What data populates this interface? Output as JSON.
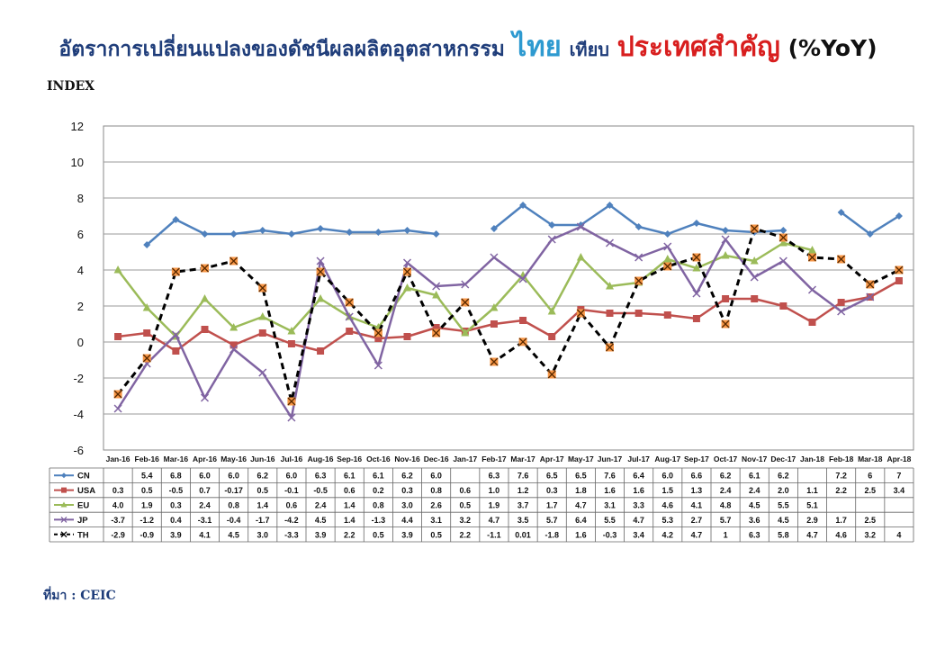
{
  "title": {
    "part1": "อัตราการเปลี่ยนแปลงของดัชนีผลผลิตอุตสาหกรรม",
    "part2": "ไทย",
    "part3": "เทียบ",
    "part4": "ประเทศสำคัญ",
    "part5": "(%YoY)"
  },
  "source": "ที่มา : CEIC",
  "colors": {
    "CN": "#4f81bd",
    "USA": "#c0504d",
    "EU": "#9bbb59",
    "JP": "#8064a2",
    "TH": "#000000",
    "TH_marker": "#f79646"
  },
  "chart_data": {
    "type": "line",
    "ylabel": "INDEX",
    "ylim": [
      -6,
      12
    ],
    "yticks": [
      "12",
      "10",
      "8",
      "6",
      "4",
      "2",
      "0",
      "-2",
      "-4",
      "-6"
    ],
    "grid": true,
    "categories": [
      "Jan-16",
      "Feb-16",
      "Mar-16",
      "Apr-16",
      "May-16",
      "Jun-16",
      "Jul-16",
      "Aug-16",
      "Sep-16",
      "Oct-16",
      "Nov-16",
      "Dec-16",
      "Jan-17",
      "Feb-17",
      "Mar-17",
      "Apr-17",
      "May-17",
      "Jun-17",
      "Jul-17",
      "Aug-17",
      "Sep-17",
      "Oct-17",
      "Nov-17",
      "Dec-17",
      "Jan-18",
      "Feb-18",
      "Mar-18",
      "Apr-18"
    ],
    "series": [
      {
        "name": "CN",
        "values": [
          null,
          5.4,
          6.8,
          6.0,
          6.0,
          6.2,
          6.0,
          6.3,
          6.1,
          6.1,
          6.2,
          6.0,
          null,
          6.3,
          7.6,
          6.5,
          6.5,
          7.6,
          6.4,
          6.0,
          6.6,
          6.2,
          6.1,
          6.2,
          null,
          7.2,
          6,
          7
        ],
        "labels": [
          "",
          "5.4",
          "6.8",
          "6.0",
          "6.0",
          "6.2",
          "6.0",
          "6.3",
          "6.1",
          "6.1",
          "6.2",
          "6.0",
          "",
          "6.3",
          "7.6",
          "6.5",
          "6.5",
          "7.6",
          "6.4",
          "6.0",
          "6.6",
          "6.2",
          "6.1",
          "6.2",
          "",
          "7.2",
          "6",
          "7"
        ]
      },
      {
        "name": "USA",
        "values": [
          0.3,
          0.5,
          -0.5,
          0.7,
          -0.17,
          0.5,
          -0.1,
          -0.5,
          0.6,
          0.2,
          0.3,
          0.8,
          0.6,
          1.0,
          1.2,
          0.3,
          1.8,
          1.6,
          1.6,
          1.5,
          1.3,
          2.4,
          2.4,
          2.0,
          1.1,
          2.2,
          2.5,
          3.4
        ],
        "labels": [
          "0.3",
          "0.5",
          "-0.5",
          "0.7",
          "-0.17",
          "0.5",
          "-0.1",
          "-0.5",
          "0.6",
          "0.2",
          "0.3",
          "0.8",
          "0.6",
          "1.0",
          "1.2",
          "0.3",
          "1.8",
          "1.6",
          "1.6",
          "1.5",
          "1.3",
          "2.4",
          "2.4",
          "2.0",
          "1.1",
          "2.2",
          "2.5",
          "3.4"
        ]
      },
      {
        "name": "EU",
        "values": [
          4.0,
          1.9,
          0.3,
          2.4,
          0.8,
          1.4,
          0.6,
          2.4,
          1.4,
          0.8,
          3.0,
          2.6,
          0.5,
          1.9,
          3.7,
          1.7,
          4.7,
          3.1,
          3.3,
          4.6,
          4.1,
          4.8,
          4.5,
          5.5,
          5.1,
          null,
          null,
          null
        ],
        "labels": [
          "4.0",
          "1.9",
          "0.3",
          "2.4",
          "0.8",
          "1.4",
          "0.6",
          "2.4",
          "1.4",
          "0.8",
          "3.0",
          "2.6",
          "0.5",
          "1.9",
          "3.7",
          "1.7",
          "4.7",
          "3.1",
          "3.3",
          "4.6",
          "4.1",
          "4.8",
          "4.5",
          "5.5",
          "5.1",
          "",
          "",
          ""
        ]
      },
      {
        "name": "JP",
        "values": [
          -3.7,
          -1.2,
          0.4,
          -3.1,
          -0.4,
          -1.7,
          -4.2,
          4.5,
          1.4,
          -1.3,
          4.4,
          3.1,
          3.2,
          4.7,
          3.5,
          5.7,
          6.4,
          5.5,
          4.7,
          5.3,
          2.7,
          5.7,
          3.6,
          4.5,
          2.9,
          1.7,
          2.5,
          null
        ],
        "labels": [
          "-3.7",
          "-1.2",
          "0.4",
          "-3.1",
          "-0.4",
          "-1.7",
          "-4.2",
          "4.5",
          "1.4",
          "-1.3",
          "4.4",
          "3.1",
          "3.2",
          "4.7",
          "3.5",
          "5.7",
          "6.4",
          "5.5",
          "4.7",
          "5.3",
          "2.7",
          "5.7",
          "3.6",
          "4.5",
          "2.9",
          "1.7",
          "2.5",
          ""
        ]
      },
      {
        "name": "TH",
        "values": [
          -2.9,
          -0.9,
          3.9,
          4.1,
          4.5,
          3.0,
          -3.3,
          3.9,
          2.2,
          0.5,
          3.9,
          0.5,
          2.2,
          -1.1,
          0.01,
          -1.8,
          1.6,
          -0.3,
          3.4,
          4.2,
          4.7,
          1,
          6.3,
          5.8,
          4.7,
          4.6,
          3.2,
          4
        ],
        "labels": [
          "-2.9",
          "-0.9",
          "3.9",
          "4.1",
          "4.5",
          "3.0",
          "-3.3",
          "3.9",
          "2.2",
          "0.5",
          "3.9",
          "0.5",
          "2.2",
          "-1.1",
          "0.01",
          "-1.8",
          "1.6",
          "-0.3",
          "3.4",
          "4.2",
          "4.7",
          "1",
          "6.3",
          "5.8",
          "4.7",
          "4.6",
          "3.2",
          "4"
        ]
      }
    ]
  }
}
